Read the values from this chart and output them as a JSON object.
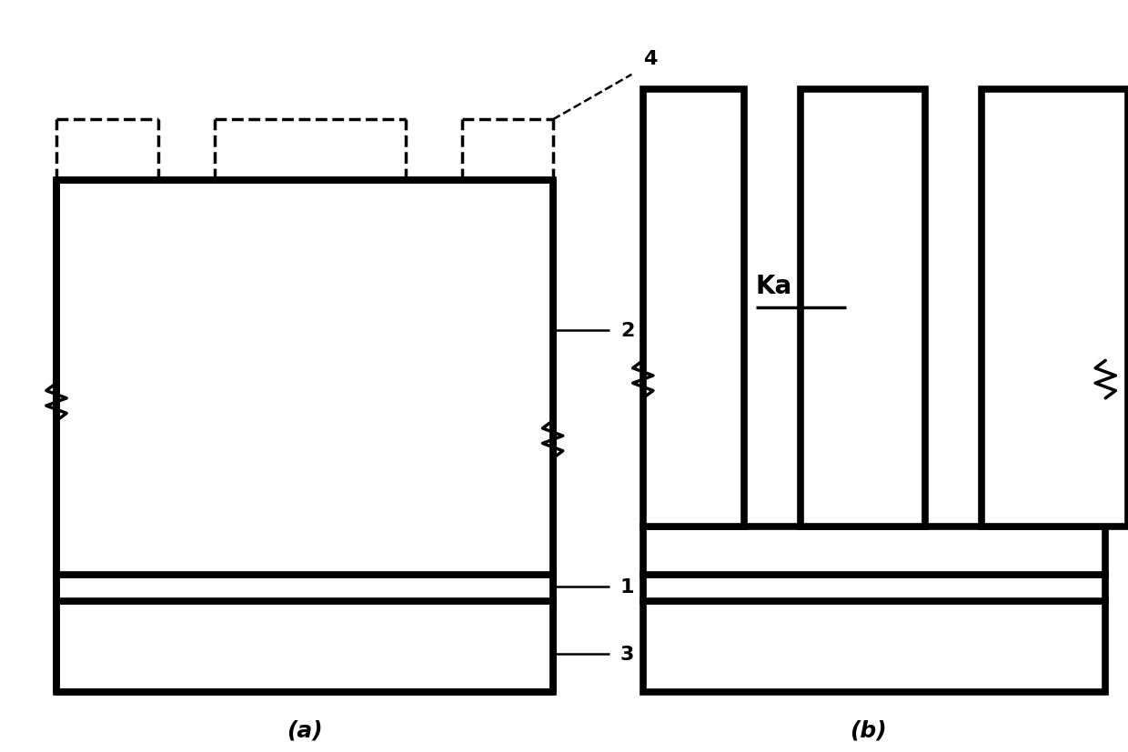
{
  "bg_color": "#ffffff",
  "line_color": "#000000",
  "lw_thin": 1.8,
  "lw_med": 2.5,
  "lw_thick": 5.5,
  "fig_width": 12.4,
  "fig_height": 8.28,
  "label_a": "(a)",
  "label_b": "(b)",
  "label_Ka": "Ka",
  "ann_1": "1",
  "ann_2": "2",
  "ann_3": "3",
  "ann_4": "4"
}
